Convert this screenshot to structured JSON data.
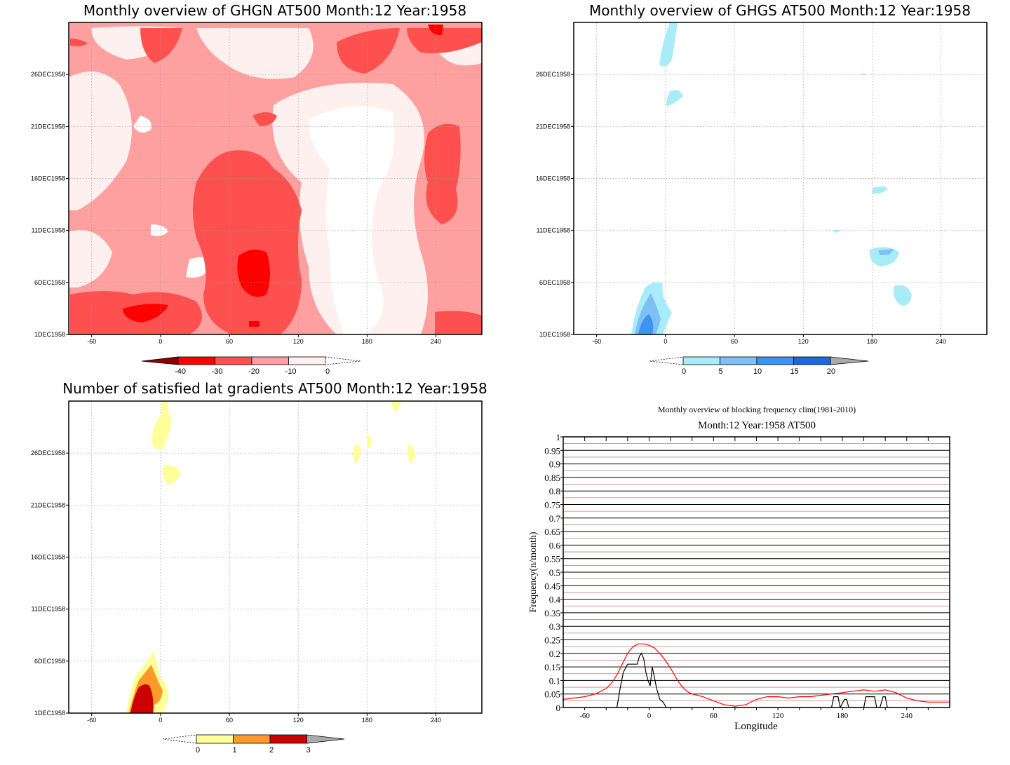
{
  "colors": {
    "red_scale": [
      "#fff0f0",
      "#ffa0a0",
      "#ff5050",
      "#ff0000",
      "#8b0000"
    ],
    "blue_scale": [
      "#a8ecf8",
      "#7ec0f5",
      "#3c94f0",
      "#1f68d8"
    ],
    "yellow_scale": [
      "#ffff99",
      "#ff9a2a",
      "#cc0000"
    ],
    "clim_line": "#ff0000",
    "year_line": "#000000"
  },
  "chart_data": [
    {
      "type": "heatmap",
      "title": "Monthly overview of GHGN AT500 Month:12 Year:1958",
      "x_ticks": [
        "-60",
        "0",
        "60",
        "120",
        "180",
        "240"
      ],
      "x_tick_values": [
        -60,
        0,
        60,
        120,
        180,
        240
      ],
      "xlim": [
        -80,
        280
      ],
      "y_ticks": [
        "1DEC1958",
        "6DEC1958",
        "11DEC1958",
        "16DEC1958",
        "21DEC1958",
        "26DEC1958"
      ],
      "y_tick_values": [
        1,
        6,
        11,
        16,
        21,
        26
      ],
      "ylim": [
        1,
        31
      ],
      "colorbar": {
        "labels": [
          "-40",
          "-30",
          "-20",
          "-10",
          "0"
        ],
        "values": [
          -40,
          -30,
          -20,
          -10,
          0
        ]
      }
    },
    {
      "type": "heatmap",
      "title": "Monthly overview of GHGS AT500 Month:12 Year:1958",
      "x_ticks": [
        "-60",
        "0",
        "60",
        "120",
        "180",
        "240"
      ],
      "x_tick_values": [
        -60,
        0,
        60,
        120,
        180,
        240
      ],
      "xlim": [
        -80,
        280
      ],
      "y_ticks": [
        "1DEC1958",
        "6DEC1958",
        "11DEC1958",
        "16DEC1958",
        "21DEC1958",
        "26DEC1958"
      ],
      "y_tick_values": [
        1,
        6,
        11,
        16,
        21,
        26
      ],
      "ylim": [
        1,
        31
      ],
      "colorbar": {
        "labels": [
          "0",
          "5",
          "10",
          "15",
          "20"
        ],
        "values": [
          0,
          5,
          10,
          15,
          20
        ]
      }
    },
    {
      "type": "heatmap",
      "title": "Number of satisfied lat gradients AT500 Month:12 Year:1958",
      "x_ticks": [
        "-60",
        "0",
        "60",
        "120",
        "180",
        "240"
      ],
      "x_tick_values": [
        -60,
        0,
        60,
        120,
        180,
        240
      ],
      "xlim": [
        -80,
        280
      ],
      "y_ticks": [
        "1DEC1958",
        "6DEC1958",
        "11DEC1958",
        "16DEC1958",
        "21DEC1958",
        "26DEC1958"
      ],
      "y_tick_values": [
        1,
        6,
        11,
        16,
        21,
        26
      ],
      "ylim": [
        1,
        31
      ],
      "colorbar": {
        "labels": [
          "0",
          "1",
          "2",
          "3"
        ],
        "values": [
          0,
          1,
          2,
          3
        ]
      }
    },
    {
      "type": "line",
      "title": "Monthly overview of blocking frequency clim(1981-2010)",
      "subtitle": "Month:12 Year:1958  AT500",
      "xlabel": "Longitude",
      "ylabel": "Frequency(n/month)",
      "xlim": [
        -80,
        280
      ],
      "ylim": [
        0,
        1
      ],
      "x_ticks": [
        "-60",
        "0",
        "60",
        "120",
        "180",
        "240"
      ],
      "x_tick_values": [
        -60,
        0,
        60,
        120,
        180,
        240
      ],
      "y_ticks": [
        "0",
        "0.05",
        "0.1",
        "0.15",
        "0.2",
        "0.25",
        "0.3",
        "0.35",
        "0.4",
        "0.45",
        "0.5",
        "0.55",
        "0.6",
        "0.65",
        "0.7",
        "0.75",
        "0.8",
        "0.85",
        "0.9",
        "0.95",
        "1"
      ],
      "series": [
        {
          "x": [
            -80,
            -70,
            -60,
            -50,
            -40,
            -35,
            -30,
            -25,
            -20,
            -15,
            -10,
            -5,
            0,
            5,
            10,
            15,
            20,
            25,
            30,
            35,
            40,
            50,
            60,
            70,
            80,
            90,
            100,
            110,
            120,
            130,
            140,
            150,
            160,
            170,
            180,
            190,
            200,
            210,
            220,
            230,
            240,
            250,
            260,
            270,
            280
          ],
          "y": [
            0.03,
            0.035,
            0.04,
            0.05,
            0.07,
            0.09,
            0.12,
            0.16,
            0.2,
            0.225,
            0.235,
            0.235,
            0.23,
            0.22,
            0.2,
            0.175,
            0.145,
            0.11,
            0.08,
            0.06,
            0.05,
            0.04,
            0.025,
            0.01,
            0.005,
            0.01,
            0.03,
            0.04,
            0.04,
            0.035,
            0.04,
            0.04,
            0.045,
            0.05,
            0.055,
            0.06,
            0.065,
            0.06,
            0.065,
            0.055,
            0.035,
            0.025,
            0.02,
            0.02,
            0.02
          ]
        },
        {
          "x": [
            -30,
            -27,
            -24,
            -20,
            -17,
            -14,
            -11,
            -9,
            -7,
            -5,
            -3,
            -1,
            1,
            3,
            5,
            7,
            10,
            13,
            16,
            20,
            170,
            172,
            174,
            176,
            178,
            182,
            184,
            186,
            188,
            200,
            202,
            205,
            210,
            212,
            215,
            218,
            220,
            222,
            224
          ],
          "y": [
            0,
            0.07,
            0.13,
            0.16,
            0.16,
            0.16,
            0.16,
            0.19,
            0.2,
            0.18,
            0.13,
            0.1,
            0.08,
            0.15,
            0.11,
            0.07,
            0.03,
            0.02,
            0,
            0,
            0,
            0.04,
            0.04,
            0.04,
            0,
            0.03,
            0.03,
            0,
            0,
            0,
            0.04,
            0.04,
            0.04,
            0,
            0,
            0.04,
            0.04,
            0,
            0
          ]
        }
      ]
    }
  ]
}
